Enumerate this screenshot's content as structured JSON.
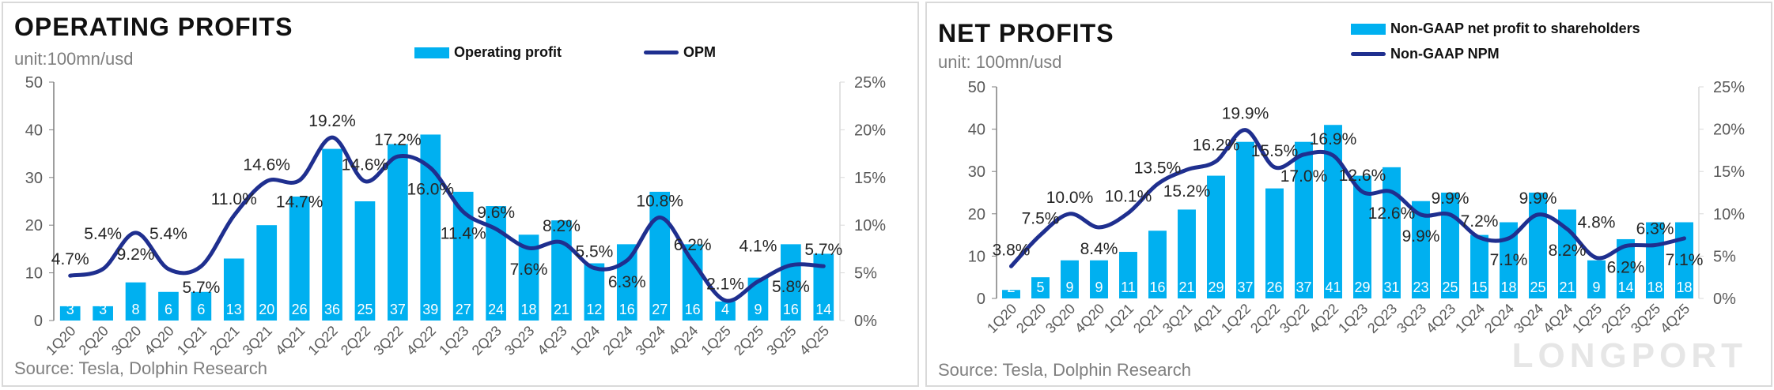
{
  "chart_data": [
    {
      "type": "bar+line",
      "title": "OPERATING PROFITS",
      "unit": "unit:100mn/usd",
      "source": "Source: Tesla, Dolphin Research",
      "legend": [
        "Operating profit",
        "OPM"
      ],
      "categories": [
        "1Q20",
        "2Q20",
        "3Q20",
        "4Q20",
        "1Q21",
        "2Q21",
        "3Q21",
        "4Q21",
        "1Q22",
        "2Q22",
        "3Q22",
        "4Q22",
        "1Q23",
        "2Q23",
        "3Q23",
        "4Q23",
        "1Q24",
        "2Q24",
        "3Q24",
        "4Q24",
        "1Q25",
        "2Q25",
        "3Q25",
        "4Q25"
      ],
      "bars": [
        3,
        3,
        8,
        6,
        6,
        13,
        20,
        26,
        36,
        25,
        37,
        39,
        27,
        24,
        18,
        21,
        12,
        16,
        27,
        16,
        4,
        9,
        16,
        14
      ],
      "line": [
        4.7,
        5.4,
        9.2,
        5.4,
        5.7,
        11.0,
        14.6,
        14.7,
        19.2,
        14.6,
        17.2,
        16.0,
        11.4,
        9.6,
        7.6,
        8.2,
        5.5,
        6.3,
        10.8,
        6.2,
        2.1,
        4.1,
        5.8,
        5.7
      ],
      "ylim": [
        0,
        50
      ],
      "yticks": [
        "0",
        "10",
        "20",
        "30",
        "40",
        "50"
      ],
      "y2lim": [
        0,
        25
      ],
      "y2ticks": [
        "0%",
        "5%",
        "10%",
        "15%",
        "20%",
        "25%"
      ],
      "colors": {
        "bar": "#00b0f0",
        "line": "#1f2f8f"
      }
    },
    {
      "type": "bar+line",
      "title": "NET PROFITS",
      "unit": "unit: 100mn/usd",
      "source": "Source: Tesla, Dolphin Research",
      "legend": [
        "Non-GAAP net profit to shareholders",
        "Non-GAAP NPM"
      ],
      "categories": [
        "1Q20",
        "2Q20",
        "3Q20",
        "4Q20",
        "1Q21",
        "2Q21",
        "3Q21",
        "4Q21",
        "1Q22",
        "2Q22",
        "3Q22",
        "4Q22",
        "1Q23",
        "2Q23",
        "3Q23",
        "4Q23",
        "1Q24",
        "2Q24",
        "3Q24",
        "4Q24",
        "1Q25",
        "2Q25",
        "3Q25",
        "4Q25"
      ],
      "bars": [
        2,
        5,
        9,
        9,
        11,
        16,
        21,
        29,
        37,
        26,
        37,
        41,
        29,
        31,
        23,
        25,
        15,
        18,
        25,
        21,
        9,
        14,
        18,
        18
      ],
      "line": [
        3.8,
        7.5,
        10.0,
        8.4,
        10.1,
        13.5,
        15.2,
        16.2,
        19.9,
        15.5,
        17.0,
        16.9,
        12.6,
        12.6,
        9.9,
        9.9,
        7.2,
        7.1,
        9.9,
        8.2,
        4.8,
        6.2,
        6.3,
        7.1
      ],
      "ylim": [
        0,
        50
      ],
      "yticks": [
        "0",
        "10",
        "20",
        "30",
        "40",
        "50"
      ],
      "y2lim": [
        0,
        25
      ],
      "y2ticks": [
        "0%",
        "5%",
        "10%",
        "15%",
        "20%",
        "25%"
      ],
      "colors": {
        "bar": "#00b0f0",
        "line": "#1f2f8f"
      }
    }
  ],
  "watermark": "LONGPORT"
}
